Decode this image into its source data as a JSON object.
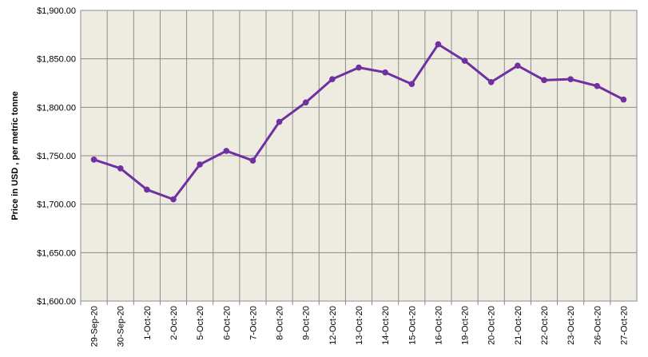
{
  "chart_data": {
    "type": "line",
    "y_label": "Price in USD , per metric tonne",
    "categories": [
      "29-Sep-20",
      "30-Sep-20",
      "1-Oct-20",
      "2-Oct-20",
      "5-Oct-20",
      "6-Oct-20",
      "7-Oct-20",
      "8-Oct-20",
      "9-Oct-20",
      "12-Oct-20",
      "13-Oct-20",
      "14-Oct-20",
      "15-Oct-20",
      "16-Oct-20",
      "19-Oct-20",
      "20-Oct-20",
      "21-Oct-20",
      "22-Oct-20",
      "23-Oct-20",
      "26-Oct-20",
      "27-Oct-20"
    ],
    "series": [
      {
        "color": "#7030a0",
        "values": [
          1746,
          1737,
          1715,
          1705,
          1741,
          1755,
          1745,
          1785,
          1805,
          1829,
          1841,
          1836,
          1824,
          1865,
          1848,
          1826,
          1843,
          1828,
          1829,
          1822,
          1808
        ]
      }
    ],
    "ylim": [
      1600,
      1900
    ],
    "yticks": [
      {
        "value": 1600,
        "label": "$1,600.00"
      },
      {
        "value": 1650,
        "label": "$1,650.00"
      },
      {
        "value": 1700,
        "label": "$1,700.00"
      },
      {
        "value": 1750,
        "label": "$1,750.00"
      },
      {
        "value": 1800,
        "label": "$1,800.00"
      },
      {
        "value": 1850,
        "label": "$1,850.00"
      },
      {
        "value": 1900,
        "label": "$1,900.00"
      }
    ],
    "grid": true
  }
}
